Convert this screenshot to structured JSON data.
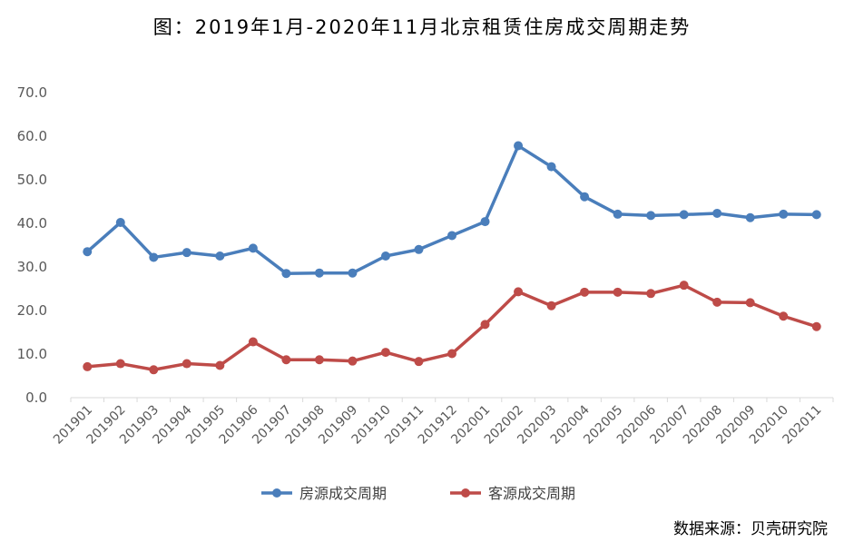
{
  "title": "图：2019年1月-2020年11月北京租赁住房成交周期走势",
  "source": "数据来源：贝壳研究院",
  "chart_data": {
    "type": "line",
    "categories": [
      "201901",
      "201902",
      "201903",
      "201904",
      "201905",
      "201906",
      "201907",
      "201908",
      "201909",
      "201910",
      "201911",
      "201912",
      "202001",
      "202002",
      "202003",
      "202004",
      "202005",
      "202006",
      "202007",
      "202008",
      "202009",
      "202010",
      "202011"
    ],
    "ylim": [
      0,
      70
    ],
    "yticks": [
      "0.0",
      "10.0",
      "20.0",
      "30.0",
      "40.0",
      "50.0",
      "60.0",
      "70.0"
    ],
    "grid": false,
    "legend_position": "bottom",
    "series": [
      {
        "name": "房源成交周期",
        "color": "#4a7ebb",
        "values": [
          33.5,
          40.2,
          32.2,
          33.3,
          32.5,
          34.3,
          28.5,
          28.6,
          28.6,
          32.5,
          34.0,
          37.2,
          40.4,
          57.8,
          53.0,
          46.1,
          42.1,
          41.8,
          42.0,
          42.3,
          41.3,
          42.1,
          42.0
        ]
      },
      {
        "name": "客源成交周期",
        "color": "#be4b48",
        "values": [
          7.1,
          7.8,
          6.4,
          7.8,
          7.4,
          12.8,
          8.7,
          8.7,
          8.4,
          10.4,
          8.3,
          10.1,
          16.8,
          24.3,
          21.1,
          24.2,
          24.2,
          23.9,
          25.8,
          21.9,
          21.8,
          18.7,
          16.3
        ]
      }
    ]
  }
}
